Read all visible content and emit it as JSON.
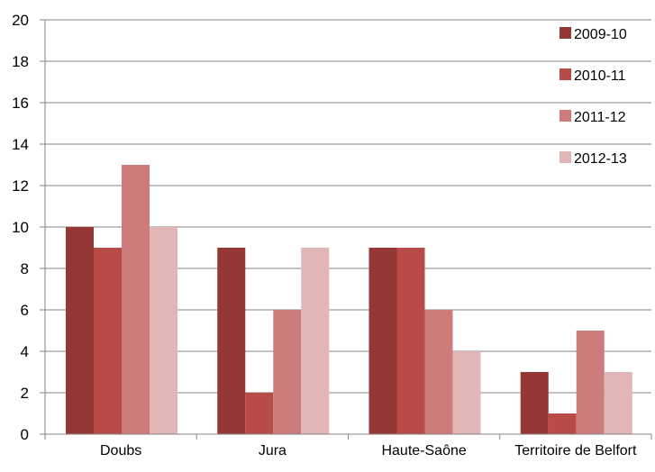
{
  "chart_data": {
    "type": "bar",
    "categories": [
      "Doubs",
      "Jura",
      "Haute-Saône",
      "Territoire de Belfort"
    ],
    "series": [
      {
        "name": "2009-10",
        "values": [
          10,
          9,
          9,
          3
        ],
        "color": "#953735"
      },
      {
        "name": "2010-11",
        "values": [
          9,
          2,
          9,
          1
        ],
        "color": "#b84a48"
      },
      {
        "name": "2011-12",
        "values": [
          13,
          6,
          6,
          5
        ],
        "color": "#cd7c7b"
      },
      {
        "name": "2012-13",
        "values": [
          10,
          9,
          4,
          3
        ],
        "color": "#e2b6b6"
      }
    ],
    "ylim": [
      0,
      20
    ],
    "yticks": [
      0,
      2,
      4,
      6,
      8,
      10,
      12,
      14,
      16,
      18,
      20
    ],
    "grid": true,
    "legend": "top-right",
    "title": "",
    "xlabel": "",
    "ylabel": ""
  }
}
